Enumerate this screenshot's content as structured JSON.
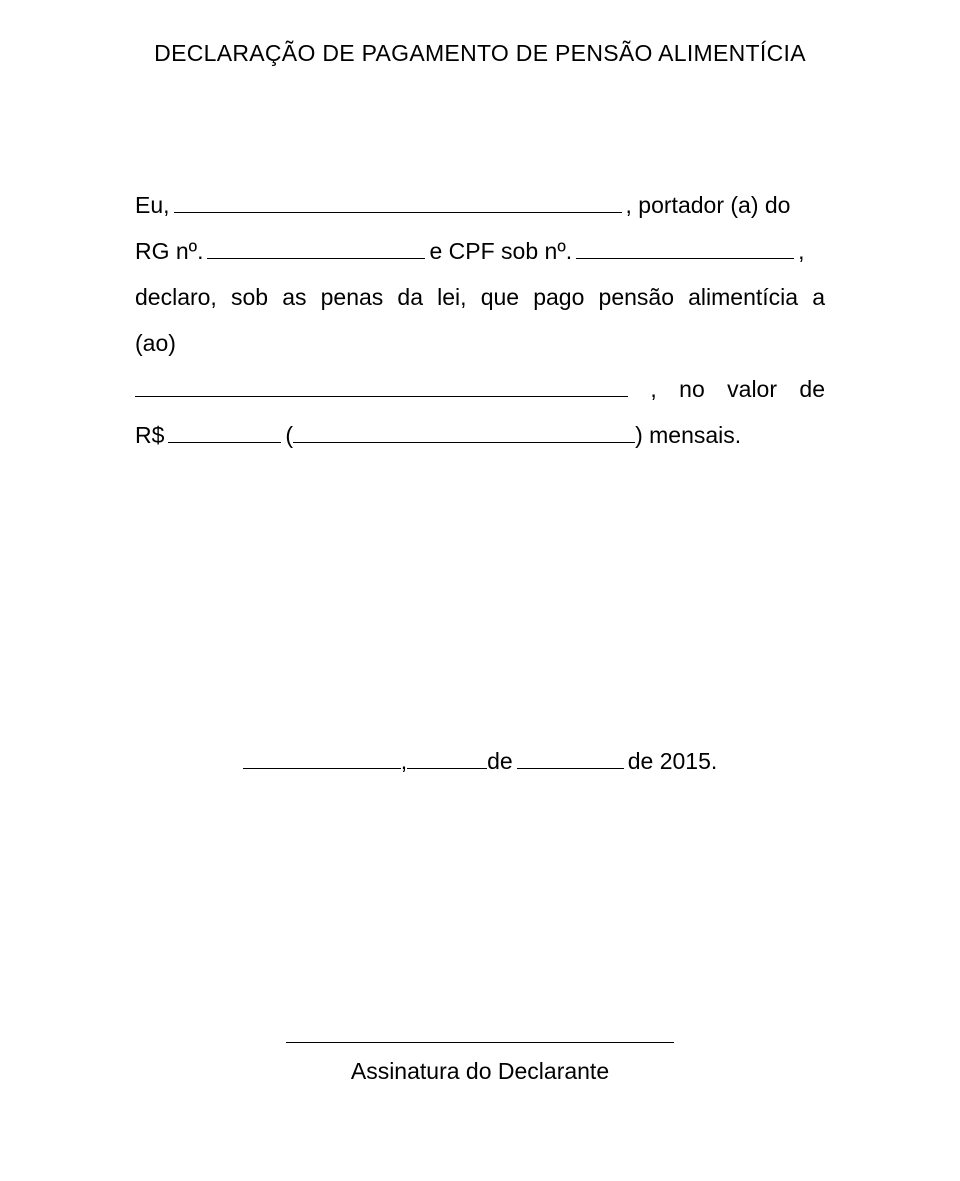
{
  "title": "DECLARAÇÃO DE PAGAMENTO DE PENSÃO ALIMENTÍCIA",
  "line1_prefix": "Eu, ",
  "line1_suffix": ", portador (a) do",
  "line2_prefix": "RG nº. ",
  "line2_mid": " e CPF sob nº. ",
  "line2_suffix": ",",
  "line3_text": "declaro, sob as penas da lei, que pago pensão alimentícia a (ao)",
  "line4_suffix_comma": ",",
  "line4_no": "no",
  "line4_valor": "valor",
  "line4_de": "de",
  "line5_prefix": "R$",
  "line5_open": " (",
  "line5_close": ") mensais.",
  "date_comma": ", ",
  "date_de1": "de ",
  "date_year": " de 2015.",
  "signature_label": "Assinatura do Declarante"
}
